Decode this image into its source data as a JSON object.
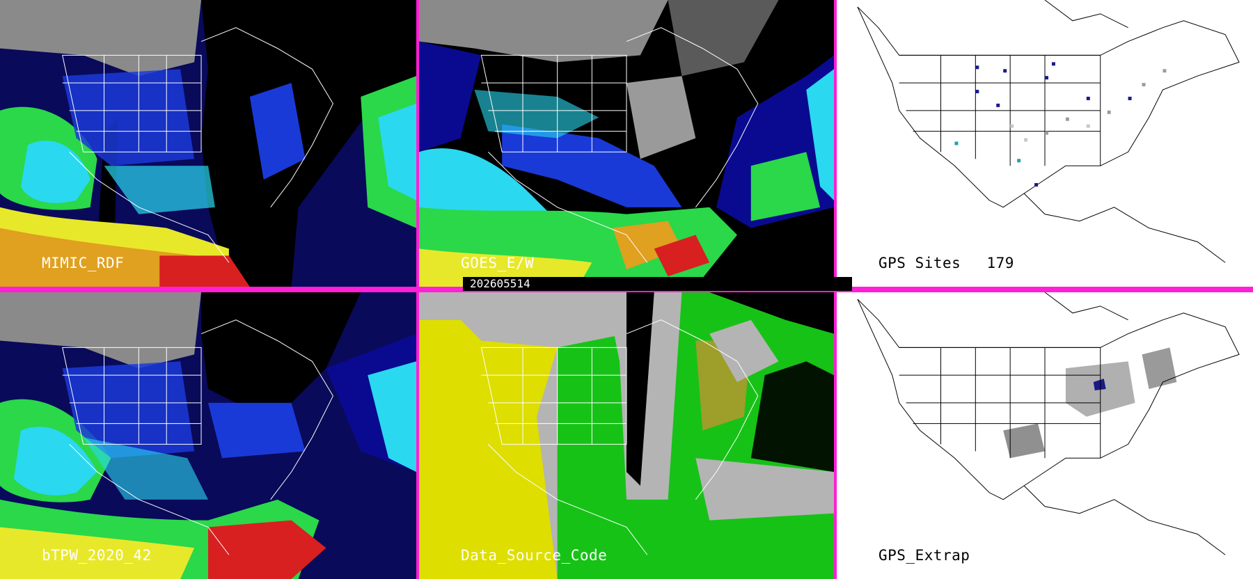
{
  "panels": [
    {
      "id": "mimic-rdf",
      "label": "MIMIC_RDF"
    },
    {
      "id": "goes-ew",
      "label": "GOES_E/W"
    },
    {
      "id": "gps-sites",
      "label": "GPS Sites",
      "count": "179"
    },
    {
      "id": "btpw",
      "label": "bTPW_2020_42"
    },
    {
      "id": "data-source-code",
      "label": "Data_Source_Code"
    },
    {
      "id": "gps-extrap",
      "label": "GPS_Extrap"
    }
  ],
  "timestamp": "202605514",
  "colors": {
    "separator": "#ff1fd6",
    "tpw_scale": [
      "#2a2a2a",
      "#9a9a9a",
      "#0a0a90",
      "#1a3ad8",
      "#2ad8f0",
      "#2ad84a",
      "#e8e82a",
      "#d82020"
    ],
    "source_code": [
      "#b4b4b4",
      "#dede00",
      "#17c217",
      "#000000"
    ],
    "gps_site_colors": [
      "#1a1a8a",
      "#9c9c9c",
      "#c8c8c8",
      "#20a0b4"
    ]
  }
}
